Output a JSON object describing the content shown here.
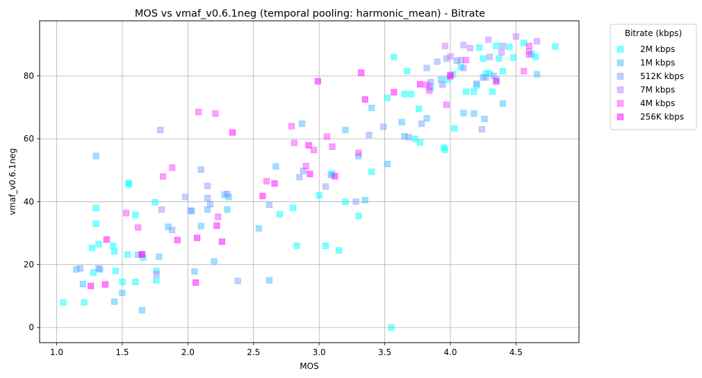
{
  "chart_data": {
    "type": "scatter",
    "title": "MOS vs vmaf_v0.6.1neg (temporal pooling: harmonic_mean) - Bitrate",
    "xlabel": "MOS",
    "ylabel": "vmaf_v0.6.1neg",
    "xlim": [
      0.87,
      4.98
    ],
    "ylim": [
      -4.8,
      97.5
    ],
    "xticks": [
      "1.0",
      "1.5",
      "2.0",
      "2.5",
      "3.0",
      "3.5",
      "4.0",
      "4.5"
    ],
    "xtick_values": [
      1.0,
      1.5,
      2.0,
      2.5,
      3.0,
      3.5,
      4.0,
      4.5
    ],
    "yticks": [
      "0",
      "20",
      "40",
      "60",
      "80"
    ],
    "ytick_values": [
      0,
      20,
      40,
      60,
      80
    ],
    "grid": true,
    "marker": "square",
    "legend": {
      "title": "Bitrate (kbps)",
      "placement": "outside-top-right"
    },
    "series": [
      {
        "name": "2M kbps",
        "color": "#00ffff",
        "points": [
          [
            1.05,
            8
          ],
          [
            1.21,
            8
          ],
          [
            1.28,
            17.5
          ],
          [
            1.27,
            25.3
          ],
          [
            1.3,
            33
          ],
          [
            1.3,
            38
          ],
          [
            1.32,
            26.5
          ],
          [
            1.43,
            26
          ],
          [
            1.44,
            24.2
          ],
          [
            1.45,
            18
          ],
          [
            1.5,
            14.5
          ],
          [
            1.54,
            23.2
          ],
          [
            1.55,
            46
          ],
          [
            1.55,
            45.5
          ],
          [
            1.6,
            35.8
          ],
          [
            1.6,
            14.5
          ],
          [
            1.66,
            22.2
          ],
          [
            1.75,
            39.8
          ],
          [
            1.76,
            18
          ],
          [
            1.76,
            15
          ],
          [
            2.7,
            36
          ],
          [
            2.8,
            38
          ],
          [
            2.83,
            26
          ],
          [
            3.0,
            42
          ],
          [
            3.05,
            26
          ],
          [
            3.1,
            49
          ],
          [
            3.15,
            24.5
          ],
          [
            3.2,
            40
          ],
          [
            3.3,
            35.5
          ],
          [
            3.4,
            49.5
          ],
          [
            3.52,
            73
          ],
          [
            3.55,
            0
          ],
          [
            3.57,
            86
          ],
          [
            3.65,
            74.2
          ],
          [
            3.67,
            81.5
          ],
          [
            3.7,
            74.2
          ],
          [
            3.73,
            60
          ],
          [
            3.76,
            69.5
          ],
          [
            3.77,
            58.8
          ],
          [
            3.85,
            76.2
          ],
          [
            3.95,
            57.2
          ],
          [
            3.96,
            56.5
          ],
          [
            3.98,
            78.8
          ],
          [
            4.02,
            80.5
          ],
          [
            4.03,
            63.3
          ],
          [
            4.08,
            82.8
          ],
          [
            4.12,
            75
          ],
          [
            4.18,
            75
          ],
          [
            4.2,
            77
          ],
          [
            4.22,
            89
          ],
          [
            4.25,
            85.5
          ],
          [
            4.27,
            80.8
          ],
          [
            4.3,
            80.8
          ],
          [
            4.32,
            75
          ],
          [
            4.35,
            89.5
          ],
          [
            4.37,
            85.5
          ],
          [
            4.4,
            81.5
          ],
          [
            4.45,
            89.2
          ],
          [
            4.48,
            85.8
          ],
          [
            4.56,
            90.5
          ],
          [
            4.62,
            87
          ],
          [
            4.65,
            86
          ],
          [
            4.8,
            89.3
          ]
        ]
      },
      {
        "name": "1M kbps",
        "color": "#40c0ff",
        "points": [
          [
            1.15,
            18.5
          ],
          [
            1.2,
            13.8
          ],
          [
            1.3,
            54.5
          ],
          [
            1.33,
            18.5
          ],
          [
            1.44,
            8.2
          ],
          [
            1.5,
            11
          ],
          [
            1.62,
            23.1
          ],
          [
            1.65,
            5.5
          ],
          [
            1.78,
            22.5
          ],
          [
            1.85,
            32
          ],
          [
            2.02,
            37.2
          ],
          [
            2.05,
            17.8
          ],
          [
            2.1,
            32.2
          ],
          [
            2.15,
            37.5
          ],
          [
            2.2,
            21
          ],
          [
            2.28,
            42.2
          ],
          [
            2.3,
            37.5
          ],
          [
            2.31,
            41.5
          ],
          [
            2.54,
            31.5
          ],
          [
            2.62,
            15
          ],
          [
            2.67,
            51.2
          ],
          [
            2.87,
            64.8
          ],
          [
            3.09,
            48.5
          ],
          [
            3.2,
            62.8
          ],
          [
            3.3,
            54.5
          ],
          [
            3.35,
            40.5
          ],
          [
            3.4,
            69.8
          ],
          [
            3.52,
            52
          ],
          [
            3.63,
            65.3
          ],
          [
            3.65,
            60.8
          ],
          [
            3.82,
            66.5
          ],
          [
            3.93,
            78.8
          ],
          [
            4.1,
            68.2
          ],
          [
            4.18,
            68
          ],
          [
            4.25,
            79.5
          ],
          [
            4.26,
            66.3
          ],
          [
            4.35,
            78.8
          ],
          [
            4.4,
            71.2
          ],
          [
            4.66,
            80.5
          ]
        ]
      },
      {
        "name": "512K kbps",
        "color": "#80a0ff",
        "points": [
          [
            1.18,
            18.8
          ],
          [
            1.32,
            18.8
          ],
          [
            1.79,
            62.8
          ],
          [
            1.88,
            31
          ],
          [
            1.98,
            41.5
          ],
          [
            2.03,
            37
          ],
          [
            2.1,
            50.2
          ],
          [
            2.15,
            41.2
          ],
          [
            2.17,
            39.2
          ],
          [
            2.3,
            42.5
          ],
          [
            2.38,
            14.8
          ],
          [
            2.62,
            39
          ],
          [
            2.85,
            47.8
          ],
          [
            2.88,
            49.8
          ],
          [
            3.05,
            44.8
          ],
          [
            3.28,
            40
          ],
          [
            3.38,
            61.2
          ],
          [
            3.49,
            63.8
          ],
          [
            3.68,
            60.5
          ],
          [
            3.78,
            64.8
          ],
          [
            3.82,
            82.5
          ],
          [
            3.85,
            78
          ],
          [
            3.9,
            84.5
          ],
          [
            3.94,
            77.2
          ],
          [
            3.97,
            85.5
          ],
          [
            4.05,
            84.8
          ],
          [
            4.08,
            85
          ],
          [
            4.1,
            82.5
          ],
          [
            4.2,
            77.5
          ],
          [
            4.24,
            63
          ],
          [
            4.27,
            79.5
          ],
          [
            4.3,
            86
          ],
          [
            4.33,
            80
          ],
          [
            4.4,
            89.5
          ]
        ]
      },
      {
        "name": "7M kbps",
        "color": "#c080ff",
        "points": [
          [
            1.76,
            17
          ],
          [
            1.8,
            37.5
          ],
          [
            2.15,
            45
          ],
          [
            3.84,
            76.7
          ],
          [
            3.96,
            89.5
          ],
          [
            4.0,
            86.2
          ],
          [
            4.1,
            89.8
          ],
          [
            4.15,
            88.8
          ],
          [
            4.29,
            91.5
          ],
          [
            4.39,
            87.5
          ],
          [
            4.5,
            92.5
          ],
          [
            4.6,
            87.8
          ],
          [
            4.66,
            91
          ]
        ]
      },
      {
        "name": "4M kbps",
        "color": "#ff40ff",
        "points": [
          [
            1.53,
            36.4
          ],
          [
            1.62,
            31.8
          ],
          [
            1.65,
            23.2
          ],
          [
            1.81,
            48
          ],
          [
            1.88,
            50.8
          ],
          [
            2.08,
            68.5
          ],
          [
            2.21,
            68
          ],
          [
            2.23,
            35.2
          ],
          [
            2.6,
            46.5
          ],
          [
            2.79,
            64
          ],
          [
            2.81,
            58.7
          ],
          [
            2.9,
            51.3
          ],
          [
            2.96,
            56.4
          ],
          [
            3.06,
            60.7
          ],
          [
            3.1,
            57.5
          ],
          [
            3.3,
            55.5
          ],
          [
            3.82,
            77.2
          ],
          [
            3.84,
            75.3
          ],
          [
            3.97,
            70.8
          ],
          [
            4.0,
            79.8
          ],
          [
            4.12,
            85
          ],
          [
            4.56,
            81.5
          ],
          [
            4.6,
            86.8
          ],
          [
            4.6,
            89.5
          ]
        ]
      },
      {
        "name": "256K kbps",
        "color": "#ff00ff",
        "points": [
          [
            1.26,
            13.2
          ],
          [
            1.37,
            13.7
          ],
          [
            1.38,
            28
          ],
          [
            1.65,
            23.3
          ],
          [
            1.92,
            27.8
          ],
          [
            2.06,
            14.3
          ],
          [
            2.07,
            28.5
          ],
          [
            2.22,
            32.4
          ],
          [
            2.26,
            27.3
          ],
          [
            2.34,
            62
          ],
          [
            2.57,
            41.8
          ],
          [
            2.66,
            45.8
          ],
          [
            2.92,
            57.9
          ],
          [
            2.93,
            48.8
          ],
          [
            2.99,
            78.3
          ],
          [
            3.12,
            48.1
          ],
          [
            3.32,
            81
          ],
          [
            3.35,
            72.5
          ],
          [
            3.57,
            74.8
          ],
          [
            3.77,
            77.3
          ],
          [
            4.0,
            80.2
          ],
          [
            4.35,
            78.2
          ]
        ]
      }
    ]
  }
}
